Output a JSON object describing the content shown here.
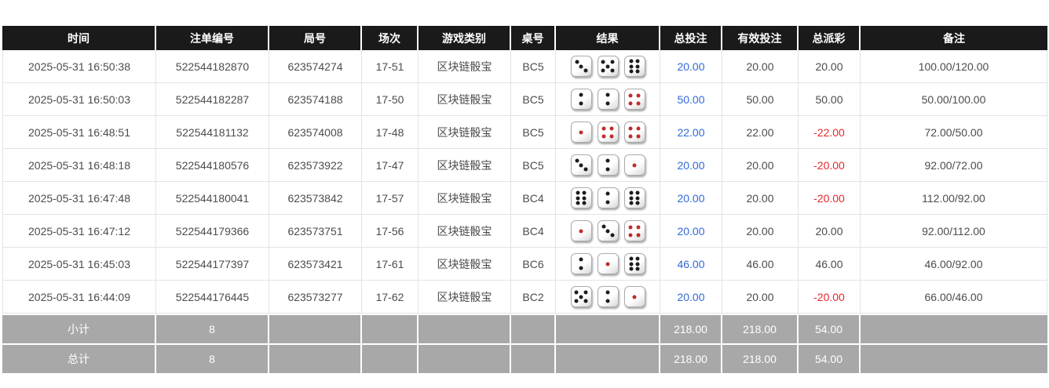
{
  "colors": {
    "header_bg": "#1a1a1a",
    "footer_bg": "#a8a8a8",
    "accent_blue": "#3069d6",
    "negative_red": "#e5262c",
    "black_pip": "#1c1c1c",
    "red_pip": "#c02b2b"
  },
  "table": {
    "columns": [
      "时间",
      "注单编号",
      "局号",
      "场次",
      "游戏类别",
      "桌号",
      "结果",
      "总投注",
      "有效投注",
      "总派彩",
      "备注"
    ],
    "rows": [
      {
        "time": "2025-05-31 16:50:38",
        "bet_no": "522544182870",
        "round_no": "623574274",
        "session": "17-51",
        "game": "区块链骰宝",
        "table_no": "BC5",
        "dice": [
          3,
          5,
          6
        ],
        "total_bet": "20.00",
        "valid_bet": "20.00",
        "payout": "20.00",
        "remark": "100.00/120.00"
      },
      {
        "time": "2025-05-31 16:50:03",
        "bet_no": "522544182287",
        "round_no": "623574188",
        "session": "17-50",
        "game": "区块链骰宝",
        "table_no": "BC5",
        "dice": [
          2,
          2,
          4
        ],
        "total_bet": "50.00",
        "valid_bet": "50.00",
        "payout": "50.00",
        "remark": "50.00/100.00"
      },
      {
        "time": "2025-05-31 16:48:51",
        "bet_no": "522544181132",
        "round_no": "623574008",
        "session": "17-48",
        "game": "区块链骰宝",
        "table_no": "BC5",
        "dice": [
          1,
          4,
          4
        ],
        "total_bet": "22.00",
        "valid_bet": "22.00",
        "payout": "-22.00",
        "remark": "72.00/50.00"
      },
      {
        "time": "2025-05-31 16:48:18",
        "bet_no": "522544180576",
        "round_no": "623573922",
        "session": "17-47",
        "game": "区块链骰宝",
        "table_no": "BC5",
        "dice": [
          3,
          2,
          1
        ],
        "total_bet": "20.00",
        "valid_bet": "20.00",
        "payout": "-20.00",
        "remark": "92.00/72.00"
      },
      {
        "time": "2025-05-31 16:47:48",
        "bet_no": "522544180041",
        "round_no": "623573842",
        "session": "17-57",
        "game": "区块链骰宝",
        "table_no": "BC4",
        "dice": [
          6,
          2,
          6
        ],
        "total_bet": "20.00",
        "valid_bet": "20.00",
        "payout": "-20.00",
        "remark": "112.00/92.00"
      },
      {
        "time": "2025-05-31 16:47:12",
        "bet_no": "522544179366",
        "round_no": "623573751",
        "session": "17-56",
        "game": "区块链骰宝",
        "table_no": "BC4",
        "dice": [
          1,
          3,
          4
        ],
        "total_bet": "20.00",
        "valid_bet": "20.00",
        "payout": "20.00",
        "remark": "92.00/112.00"
      },
      {
        "time": "2025-05-31 16:45:03",
        "bet_no": "522544177397",
        "round_no": "623573421",
        "session": "17-61",
        "game": "区块链骰宝",
        "table_no": "BC6",
        "dice": [
          2,
          1,
          6
        ],
        "total_bet": "46.00",
        "valid_bet": "46.00",
        "payout": "46.00",
        "remark": "46.00/92.00"
      },
      {
        "time": "2025-05-31 16:44:09",
        "bet_no": "522544176445",
        "round_no": "623573277",
        "session": "17-62",
        "game": "区块链骰宝",
        "table_no": "BC2",
        "dice": [
          5,
          2,
          1
        ],
        "total_bet": "20.00",
        "valid_bet": "20.00",
        "payout": "-20.00",
        "remark": "66.00/46.00"
      }
    ],
    "footer": [
      {
        "label": "小计",
        "count": "8",
        "total_bet": "218.00",
        "valid_bet": "218.00",
        "payout": "54.00"
      },
      {
        "label": "总计",
        "count": "8",
        "total_bet": "218.00",
        "valid_bet": "218.00",
        "payout": "54.00"
      }
    ]
  }
}
